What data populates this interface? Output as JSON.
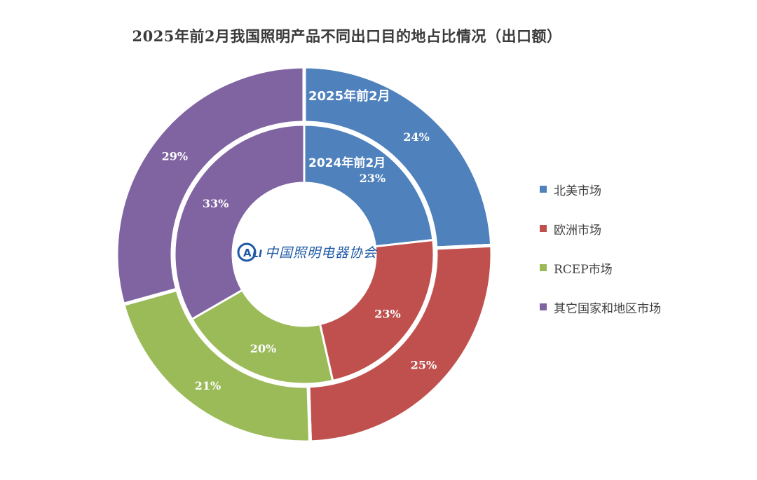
{
  "chart_data": {
    "type": "pie",
    "subtype": "nested-donut",
    "title": "2025年前2月我国照明产品不同出口目的地占比情况（出口额）",
    "categories": [
      "北美市场",
      "欧洲市场",
      "RCEP市场",
      "其它国家和地区市场"
    ],
    "colors": [
      "#4f81bd",
      "#c0504d",
      "#9bbb59",
      "#8064a2"
    ],
    "series": [
      {
        "name": "2025年前2月",
        "ring": "outer",
        "values": [
          24,
          25,
          21,
          29
        ],
        "labels": [
          "24%",
          "25%",
          "21%",
          "29%"
        ]
      },
      {
        "name": "2024年前2月",
        "ring": "inner",
        "values": [
          23,
          23,
          20,
          33
        ],
        "labels": [
          "23%",
          "23%",
          "20%",
          "33%"
        ]
      }
    ],
    "legend_position": "right",
    "watermark": "中国照明电器协会"
  }
}
